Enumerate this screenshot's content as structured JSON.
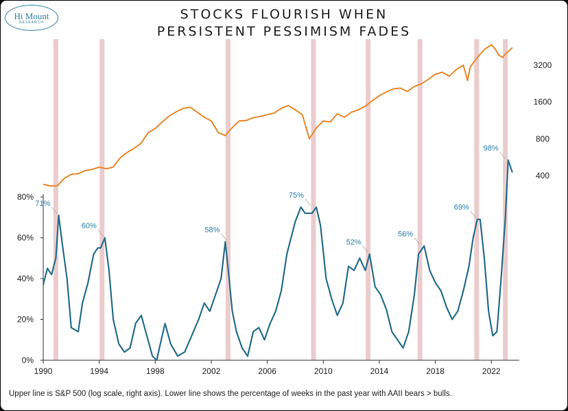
{
  "logo": {
    "line1": "Hi Mount",
    "line2": "RESEARCH"
  },
  "title_line1": "STOCKS FLOURISH WHEN",
  "title_line2": "PERSISTENT PESSIMISM FADES",
  "footnote": "Upper line is S&P 500 (log scale, right axis). Lower line shows the percentage of weeks in the past year with AAII bears > bulls.",
  "colors": {
    "sp500": "#e8892c",
    "bears": "#2a6f8c",
    "shade": "#e8c3c3",
    "annotation": "#2a7fa8"
  },
  "chart_data": [
    {
      "type": "line",
      "series": [
        {
          "name": "",
          "x": [
            1990.0,
            1990.5,
            1991.0,
            1991.5,
            1992.0,
            1992.5,
            1993.0,
            1993.5,
            1994.0,
            1994.5,
            1995.0,
            1995.5,
            1996.0,
            1996.5,
            1997.0,
            1997.5,
            1998.0,
            1998.5,
            1999.0,
            1999.5,
            2000.0,
            2000.5,
            2001.0,
            2001.5,
            2002.0,
            2002.5,
            2003.0,
            2003.5,
            2004.0,
            2004.5,
            2005.0,
            2005.5,
            2006.0,
            2006.5,
            2007.0,
            2007.5,
            2008.0,
            2008.5,
            2009.0,
            2009.5,
            2010.0,
            2010.5,
            2011.0,
            2011.5,
            2012.0,
            2012.5,
            2013.0,
            2013.5,
            2014.0,
            2014.5,
            2015.0,
            2015.5,
            2016.0,
            2016.5,
            2017.0,
            2017.5,
            2018.0,
            2018.5,
            2019.0,
            2019.5,
            2020.0,
            2020.3,
            2020.5,
            2021.0,
            2021.5,
            2022.0,
            2022.3,
            2022.5,
            2022.8,
            2023.0,
            2023.5
          ],
          "values": [
            340,
            330,
            330,
            380,
            410,
            415,
            440,
            450,
            470,
            455,
            470,
            560,
            620,
            670,
            740,
            900,
            970,
            1100,
            1230,
            1330,
            1420,
            1450,
            1320,
            1200,
            1120,
            900,
            850,
            990,
            1120,
            1130,
            1190,
            1220,
            1260,
            1300,
            1420,
            1500,
            1380,
            1260,
            800,
            980,
            1120,
            1100,
            1280,
            1200,
            1320,
            1380,
            1480,
            1640,
            1800,
            1930,
            2050,
            2080,
            1950,
            2150,
            2250,
            2450,
            2700,
            2800,
            2600,
            2950,
            3200,
            2400,
            3100,
            3700,
            4300,
            4700,
            4300,
            3900,
            3700,
            3950,
            4450
          ]
        },
        {
          "name": "",
          "x": [
            1990.0,
            1990.3,
            1990.6,
            1990.9,
            1991.1,
            1991.4,
            1991.7,
            1992.0,
            1992.5,
            1992.8,
            1993.2,
            1993.6,
            1993.9,
            1994.1,
            1994.4,
            1994.7,
            1995.0,
            1995.4,
            1995.8,
            1996.2,
            1996.6,
            1997.0,
            1997.4,
            1997.8,
            1998.1,
            1998.3,
            1998.7,
            1999.1,
            1999.6,
            2000.1,
            2000.6,
            2001.1,
            2001.5,
            2001.9,
            2002.3,
            2002.7,
            2003.0,
            2003.2,
            2003.5,
            2003.8,
            2004.2,
            2004.6,
            2005.0,
            2005.4,
            2005.8,
            2006.2,
            2006.6,
            2007.0,
            2007.4,
            2007.7,
            2008.0,
            2008.4,
            2008.7,
            2009.0,
            2009.2,
            2009.5,
            2009.8,
            2010.2,
            2010.6,
            2011.0,
            2011.4,
            2011.8,
            2012.2,
            2012.6,
            2013.0,
            2013.3,
            2013.7,
            2014.1,
            2014.5,
            2014.9,
            2015.3,
            2015.7,
            2016.1,
            2016.5,
            2016.8,
            2017.2,
            2017.6,
            2018.0,
            2018.4,
            2018.8,
            2019.2,
            2019.6,
            2020.0,
            2020.4,
            2020.7,
            2021.0,
            2021.2,
            2021.5,
            2021.8,
            2022.1,
            2022.4,
            2022.7,
            2023.0,
            2023.2,
            2023.5
          ],
          "values": [
            37,
            45,
            42,
            50,
            71,
            55,
            40,
            16,
            14,
            28,
            38,
            52,
            55,
            55,
            60,
            44,
            20,
            8,
            4,
            6,
            18,
            22,
            12,
            2,
            0,
            6,
            18,
            8,
            2,
            4,
            12,
            20,
            28,
            24,
            32,
            40,
            58,
            45,
            24,
            14,
            6,
            2,
            14,
            16,
            10,
            18,
            24,
            34,
            52,
            60,
            68,
            75,
            72,
            72,
            72,
            75,
            66,
            40,
            30,
            22,
            28,
            46,
            44,
            50,
            44,
            52,
            36,
            32,
            25,
            14,
            10,
            6,
            14,
            32,
            52,
            56,
            44,
            38,
            34,
            26,
            20,
            24,
            34,
            46,
            60,
            69,
            69,
            50,
            24,
            12,
            14,
            40,
            70,
            98,
            92
          ]
        }
      ],
      "x_ticks": [
        "1990",
        "1994",
        "1998",
        "2002",
        "2006",
        "2010",
        "2014",
        "2018",
        "2022"
      ],
      "xlim": [
        1990,
        2023.8
      ],
      "y_left_ticks": [
        "0%",
        "20%",
        "40%",
        "60%",
        "80%"
      ],
      "y_left_lim": [
        0,
        100
      ],
      "y_right_ticks": [
        "400",
        "800",
        "1600",
        "3200"
      ],
      "y_right_scale": "log",
      "y_right_lim": [
        170,
        5000
      ],
      "shaded_years": [
        1990.9,
        1994.2,
        2003.2,
        2009.3,
        2013.2,
        2016.9,
        2020.95,
        2023.0
      ],
      "annotations": [
        {
          "x": 1991.0,
          "y": 71,
          "text": "71%"
        },
        {
          "x": 1994.3,
          "y": 60,
          "text": "60%"
        },
        {
          "x": 2003.1,
          "y": 58,
          "text": "58%"
        },
        {
          "x": 2009.1,
          "y": 75,
          "text": "75%"
        },
        {
          "x": 2013.2,
          "y": 52,
          "text": "52%"
        },
        {
          "x": 2016.9,
          "y": 56,
          "text": "56%"
        },
        {
          "x": 2020.9,
          "y": 69,
          "text": "69%"
        },
        {
          "x": 2023.0,
          "y": 98,
          "text": "98%"
        }
      ],
      "grid": false,
      "legend": "none"
    }
  ]
}
